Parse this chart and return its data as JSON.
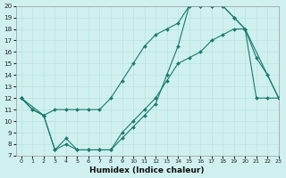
{
  "bg_color": "#cff0ee",
  "grid_color": "#b8e4e0",
  "line_color": "#1a7a6e",
  "xlabel": "Humidex (Indice chaleur)",
  "xlim": [
    -0.5,
    23
  ],
  "ylim": [
    7,
    20
  ],
  "xticks": [
    0,
    1,
    2,
    3,
    4,
    5,
    6,
    7,
    8,
    9,
    10,
    11,
    12,
    13,
    14,
    15,
    16,
    17,
    18,
    19,
    20,
    21,
    22,
    23
  ],
  "yticks": [
    7,
    8,
    9,
    10,
    11,
    12,
    13,
    14,
    15,
    16,
    17,
    18,
    19,
    20
  ],
  "curve1_x": [
    0,
    1,
    2,
    3,
    4,
    5,
    6,
    7,
    8,
    9,
    10,
    11,
    12,
    13,
    14,
    15,
    16,
    17,
    18,
    19,
    20,
    23
  ],
  "curve1_y": [
    12,
    11,
    10.5,
    11,
    11,
    11,
    11,
    11,
    12,
    13.5,
    15,
    16.5,
    17.5,
    18,
    18.5,
    20,
    20,
    20,
    20,
    19,
    18,
    12
  ],
  "curve2_x": [
    0,
    1,
    2,
    3,
    4,
    5,
    6,
    7,
    8,
    9,
    10,
    11,
    12,
    13,
    14,
    15,
    16,
    17,
    18,
    19,
    20,
    21,
    22,
    23
  ],
  "curve2_y": [
    12,
    11,
    10.5,
    7.5,
    8,
    7.5,
    7.5,
    7.5,
    7.5,
    8.5,
    9.5,
    10.5,
    11.5,
    14,
    16.5,
    20,
    20,
    20,
    20,
    19,
    18,
    15.5,
    14,
    12
  ],
  "curve3_x": [
    0,
    2,
    3,
    4,
    5,
    6,
    7,
    8,
    9,
    10,
    11,
    12,
    13,
    14,
    15,
    16,
    17,
    18,
    19,
    20,
    21,
    22,
    23
  ],
  "curve3_y": [
    12,
    10.5,
    7.5,
    8.5,
    7.5,
    7.5,
    7.5,
    7.5,
    9,
    10,
    11,
    12,
    13.5,
    15,
    15.5,
    16,
    17,
    17.5,
    18,
    18,
    12,
    12,
    12
  ]
}
